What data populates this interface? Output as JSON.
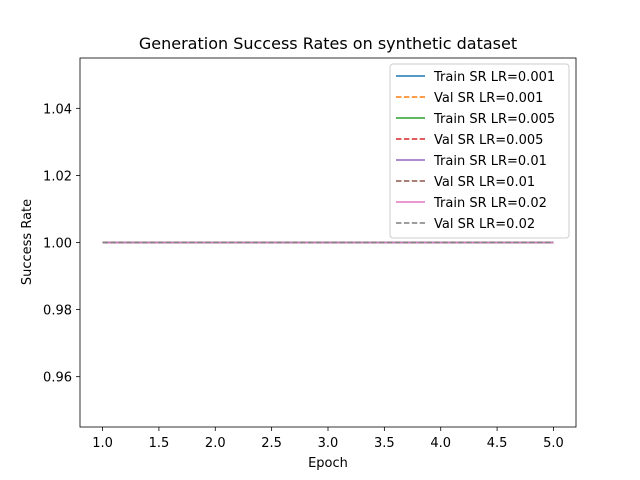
{
  "chart_data": {
    "type": "line",
    "title": "Generation Success Rates on synthetic dataset",
    "xlabel": "Epoch",
    "ylabel": "Success Rate",
    "x": [
      1,
      2,
      3,
      4,
      5
    ],
    "xlim": [
      0.8,
      5.2
    ],
    "ylim": [
      0.945,
      1.055
    ],
    "xticks": [
      1.0,
      1.5,
      2.0,
      2.5,
      3.0,
      3.5,
      4.0,
      4.5,
      5.0
    ],
    "xtick_labels": [
      "1.0",
      "1.5",
      "2.0",
      "2.5",
      "3.0",
      "3.5",
      "4.0",
      "4.5",
      "5.0"
    ],
    "yticks": [
      0.96,
      0.98,
      1.0,
      1.02,
      1.04
    ],
    "ytick_labels": [
      "0.96",
      "0.98",
      "1.00",
      "1.02",
      "1.04"
    ],
    "grid": false,
    "legend_position": "top-right",
    "series": [
      {
        "name": "Train SR LR=0.001",
        "values": [
          1,
          1,
          1,
          1,
          1
        ],
        "color": "#1f77b4",
        "dashed": false
      },
      {
        "name": "Val SR LR=0.001",
        "values": [
          1,
          1,
          1,
          1,
          1
        ],
        "color": "#ff7f0e",
        "dashed": true
      },
      {
        "name": "Train SR LR=0.005",
        "values": [
          1,
          1,
          1,
          1,
          1
        ],
        "color": "#2ca02c",
        "dashed": false
      },
      {
        "name": "Val SR LR=0.005",
        "values": [
          1,
          1,
          1,
          1,
          1
        ],
        "color": "#d62728",
        "dashed": true
      },
      {
        "name": "Train SR LR=0.01",
        "values": [
          1,
          1,
          1,
          1,
          1
        ],
        "color": "#9467bd",
        "dashed": false
      },
      {
        "name": "Val SR LR=0.01",
        "values": [
          1,
          1,
          1,
          1,
          1
        ],
        "color": "#8c564b",
        "dashed": true
      },
      {
        "name": "Train SR LR=0.02",
        "values": [
          1,
          1,
          1,
          1,
          1
        ],
        "color": "#e377c2",
        "dashed": false
      },
      {
        "name": "Val SR LR=0.02",
        "values": [
          1,
          1,
          1,
          1,
          1
        ],
        "color": "#7f7f7f",
        "dashed": true
      }
    ]
  }
}
